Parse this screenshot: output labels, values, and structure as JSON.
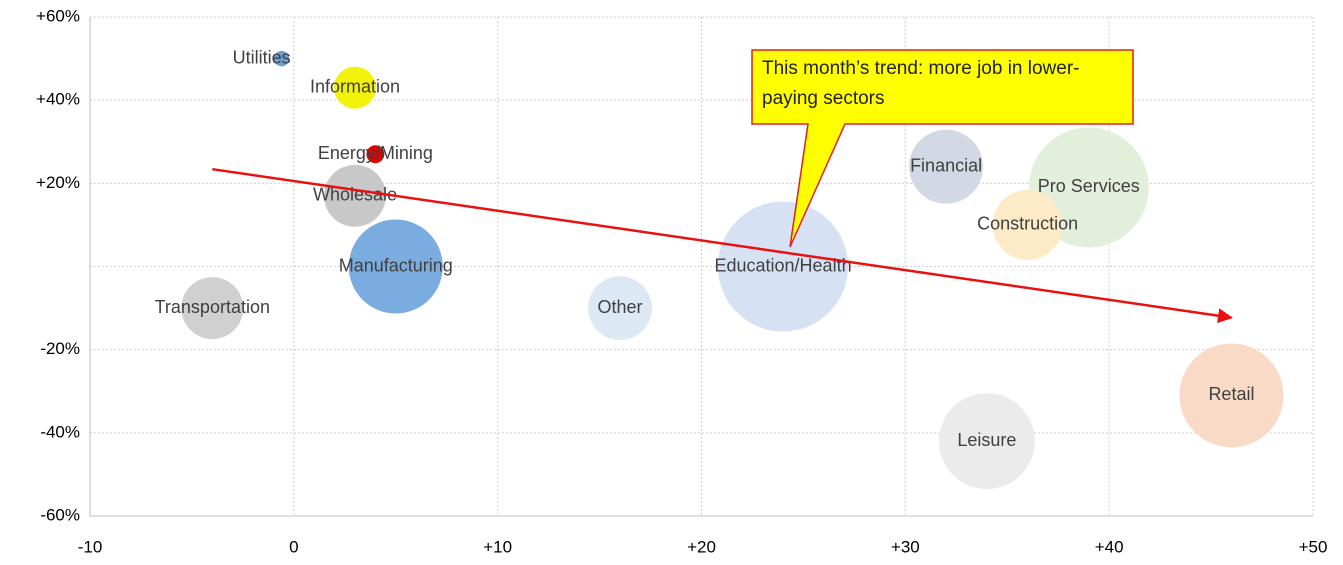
{
  "chart_data": {
    "type": "bubble",
    "xlim": [
      -10,
      50
    ],
    "xticks": [
      -10,
      0,
      {
        "value": 10,
        "label": "+10"
      },
      {
        "value": 20,
        "label": "+20"
      },
      {
        "value": 30,
        "label": "+30"
      },
      {
        "value": 40,
        "label": "+40"
      },
      {
        "value": 50,
        "label": "+50"
      }
    ],
    "ylim": [
      -60,
      60
    ],
    "yticks": [
      {
        "value": -60,
        "label": "-60%"
      },
      {
        "value": -40,
        "label": "-40%"
      },
      {
        "value": -20,
        "label": "-20%"
      },
      {
        "value": 20,
        "label": "+20%"
      },
      {
        "value": 40,
        "label": "+40%"
      },
      {
        "value": 60,
        "label": "+60%"
      }
    ],
    "ygrid": [
      -60,
      -40,
      -20,
      0,
      20,
      40,
      60
    ],
    "grid": true,
    "categories": [
      "Utilities",
      "Information",
      "Energy/Mining",
      "Wholesale",
      "Manufacturing",
      "Transportation",
      "Other",
      "Education/Health",
      "Financial",
      "Pro Services",
      "Construction",
      "Retail",
      "Leisure"
    ],
    "x": [
      -0.6,
      3,
      4,
      3,
      5,
      -4,
      16,
      24,
      32,
      39,
      36,
      46,
      34
    ],
    "values": [
      50,
      43,
      27,
      17,
      0,
      -10,
      -10,
      0,
      24,
      19,
      10,
      -31,
      -42
    ],
    "sizes": [
      6,
      44,
      8,
      96,
      221,
      96,
      102,
      423,
      137,
      360,
      123,
      270,
      230
    ],
    "colors": [
      "#6a9fd4",
      "#f2f20a",
      "#e00000",
      "#c8c8c8",
      "#7aacdf",
      "#d0d0d0",
      "#dde8f5",
      "#d6e2f3",
      "#d3d9e4",
      "#e2efda",
      "#fdebc8",
      "#f8dac6",
      "#ebebeb"
    ],
    "trend_line": {
      "x": [
        -4,
        46
      ],
      "y": [
        23.4,
        -12.3
      ],
      "color": "#e81010"
    },
    "annotation": "This month’s trend: more job in lower-paying sectors"
  }
}
